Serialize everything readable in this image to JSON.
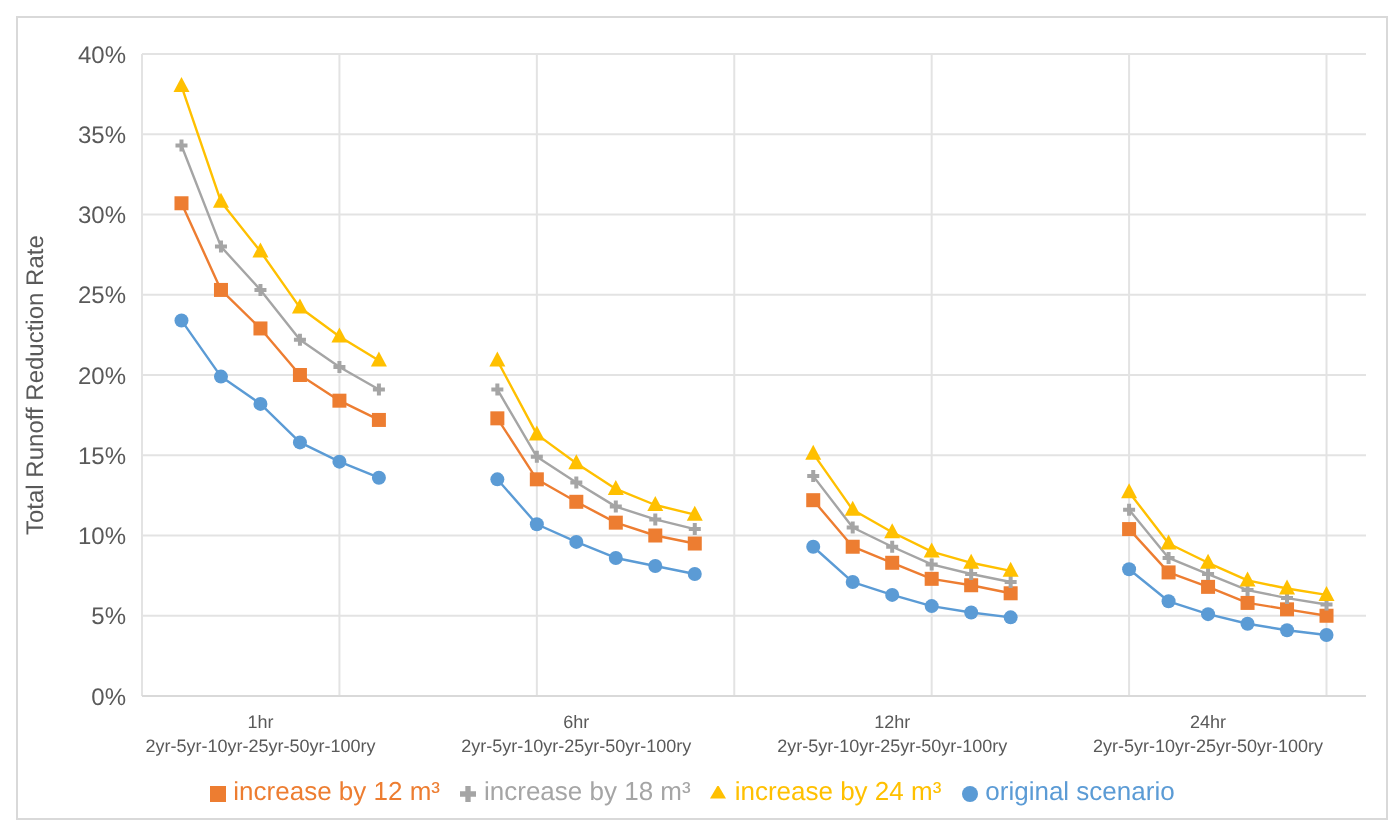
{
  "chart_data": {
    "type": "line",
    "ylabel": "Total Runoff Reduction Rate",
    "categories": [
      null,
      null,
      null,
      "1hr\n2yr-5yr-10yr-25yr-50yr-100ry",
      null,
      null,
      null,
      null,
      null,
      null,
      null,
      "6hr\n2yr-5yr-10yr-25yr-50yr-100ry",
      null,
      null,
      null,
      null,
      null,
      null,
      null,
      "12hr\n2yr-5yr-10yr-25yr-50yr-100ry",
      null,
      null,
      null,
      null,
      null,
      null,
      null,
      "24hr\n2yr-5yr-10yr-25yr-50yr-100ry",
      null,
      null,
      null,
      null
    ],
    "series": [
      {
        "name": "original scenario",
        "color": "#5b9bd5",
        "marker": "circle",
        "values": [
          null,
          23.4,
          19.9,
          18.2,
          15.8,
          14.6,
          13.6,
          null,
          null,
          13.5,
          10.7,
          9.6,
          8.6,
          8.1,
          7.6,
          null,
          null,
          9.3,
          7.1,
          6.3,
          5.6,
          5.2,
          4.9,
          null,
          null,
          7.9,
          5.9,
          5.1,
          4.5,
          4.1,
          3.8,
          null
        ]
      },
      {
        "name": "increase by 12 m³",
        "color": "#ed7d31",
        "marker": "square",
        "values": [
          null,
          30.7,
          25.3,
          22.9,
          20.0,
          18.4,
          17.2,
          null,
          null,
          17.3,
          13.5,
          12.1,
          10.8,
          10.0,
          9.5,
          null,
          null,
          12.2,
          9.3,
          8.3,
          7.3,
          6.9,
          6.4,
          null,
          null,
          10.4,
          7.7,
          6.8,
          5.8,
          5.4,
          5.0,
          null
        ]
      },
      {
        "name": "increase by 18 m³",
        "color": "#a5a5a5",
        "marker": "cross",
        "values": [
          null,
          34.3,
          28.0,
          25.3,
          22.2,
          20.5,
          19.1,
          null,
          null,
          19.1,
          14.9,
          13.3,
          11.8,
          11.0,
          10.4,
          null,
          null,
          13.7,
          10.5,
          9.3,
          8.2,
          7.6,
          7.1,
          null,
          null,
          11.6,
          8.6,
          7.6,
          6.6,
          6.1,
          5.7,
          null
        ]
      },
      {
        "name": "increase by 24 m³",
        "color": "#ffc000",
        "marker": "triangle",
        "values": [
          null,
          38.0,
          30.8,
          27.7,
          24.2,
          22.4,
          20.9,
          null,
          null,
          20.9,
          16.3,
          14.5,
          12.9,
          11.9,
          11.3,
          null,
          null,
          15.1,
          11.6,
          10.2,
          9.0,
          8.3,
          7.8,
          null,
          null,
          12.7,
          9.5,
          8.3,
          7.2,
          6.7,
          6.3,
          null
        ]
      }
    ],
    "ylim": [
      0,
      40
    ],
    "yticks": [
      {
        "value": 0,
        "label": "0%"
      },
      {
        "value": 5,
        "label": "5%"
      },
      {
        "value": 10,
        "label": "10%"
      },
      {
        "value": 15,
        "label": "15%"
      },
      {
        "value": 20,
        "label": "20%"
      },
      {
        "value": 25,
        "label": "25%"
      },
      {
        "value": 30,
        "label": "30%"
      },
      {
        "value": 35,
        "label": "35%"
      },
      {
        "value": 40,
        "label": "40%"
      }
    ],
    "grid": true,
    "legend": "bottom",
    "line_style": "solid"
  }
}
